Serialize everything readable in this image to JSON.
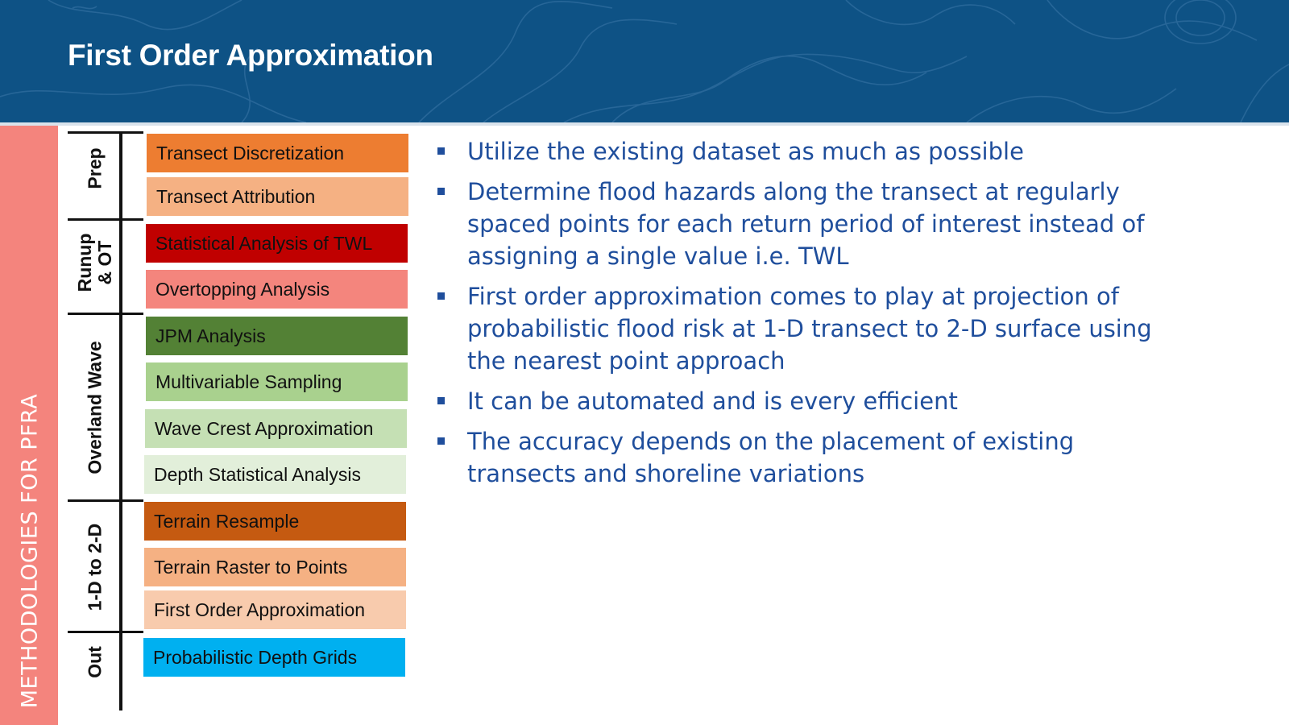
{
  "title": "First Order Approximation",
  "sidebar_label": "METHODOLOGIES FOR PFRA",
  "phases": [
    {
      "label": "Prep"
    },
    {
      "label": "Runup\n& OT"
    },
    {
      "label": "Overland Wave"
    },
    {
      "label": "1-D to 2-D"
    },
    {
      "label": "Out"
    }
  ],
  "steps": [
    {
      "label": "Transect Discretization",
      "color": "#ed7d31"
    },
    {
      "label": "Transect Attribution",
      "color": "#f5b183"
    },
    {
      "label": "Statistical Analysis of TWL",
      "color": "#c00000"
    },
    {
      "label": "Overtopping Analysis",
      "color": "#f4857d"
    },
    {
      "label": "JPM Analysis",
      "color": "#538135"
    },
    {
      "label": "Multivariable Sampling",
      "color": "#a9d18e"
    },
    {
      "label": "Wave Crest Approximation",
      "color": "#c5e0b4"
    },
    {
      "label": "Depth Statistical Analysis",
      "color": "#e2efda"
    },
    {
      "label": "Terrain Resample",
      "color": "#c55a11"
    },
    {
      "label": "Terrain Raster to Points",
      "color": "#f5b183"
    },
    {
      "label": "First Order Approximation",
      "color": "#f8cbad"
    },
    {
      "label": "Probabilistic Depth Grids",
      "color": "#00b0f0"
    }
  ],
  "bullets": [
    "Utilize the existing dataset as much as possible",
    "Determine flood hazards along the transect at regularly spaced points for each return period of interest instead of assigning a single value i.e. TWL",
    "First order approximation comes to play at projection of probabilistic flood risk at 1-D transect to 2-D surface using the nearest point approach",
    "It can be automated and is every efficient",
    "The accuracy depends on the placement of existing transects and shoreline variations"
  ],
  "colors": {
    "header": "#0e5285",
    "sidebar": "#f4847d",
    "bullet_text": "#1f4e9c"
  }
}
